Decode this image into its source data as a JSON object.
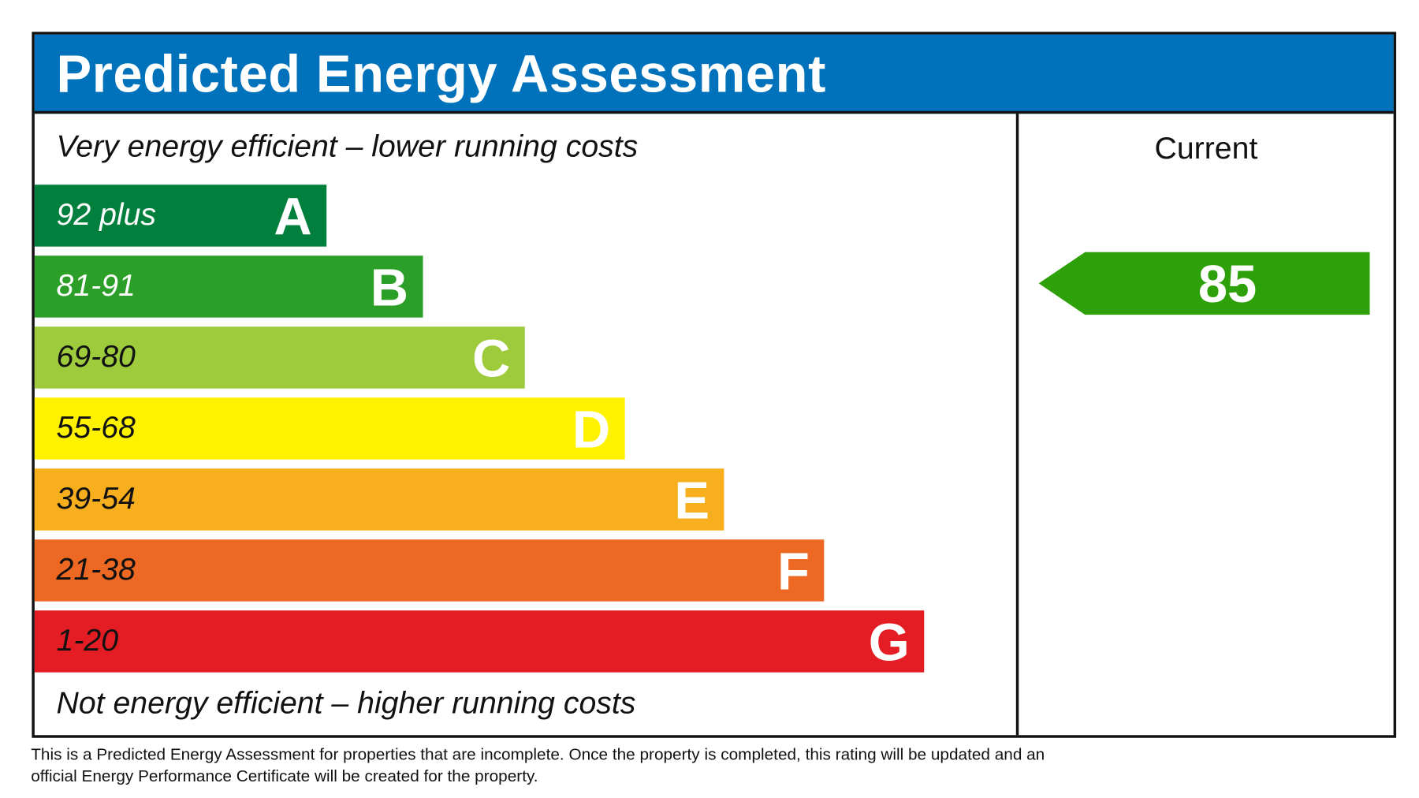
{
  "title": "Predicted Energy Assessment",
  "top_caption": "Very energy efficient – lower running costs",
  "bottom_caption": "Not energy efficient – higher running costs",
  "bands": [
    {
      "range": "92 plus",
      "letter": "A",
      "color": "#007f3d",
      "text_color": "#ffffff"
    },
    {
      "range": "81-91",
      "letter": "B",
      "color": "#2c9f29",
      "text_color": "#ffffff"
    },
    {
      "range": "69-80",
      "letter": "C",
      "color": "#9dcb3c",
      "text_color": "#111111"
    },
    {
      "range": "55-68",
      "letter": "D",
      "color": "#fff200",
      "text_color": "#111111"
    },
    {
      "range": "39-54",
      "letter": "E",
      "color": "#f7af1d",
      "text_color": "#111111"
    },
    {
      "range": "21-38",
      "letter": "F",
      "color": "#ed6823",
      "text_color": "#111111"
    },
    {
      "range": "1-20",
      "letter": "G",
      "color": "#e31d23",
      "text_color": "#111111"
    }
  ],
  "current": {
    "label": "Current",
    "value": "85",
    "color": "#2ea00a"
  },
  "note_line1": "This is a Predicted Energy Assessment for properties that are incomplete. Once the property is completed, this rating will be updated and an",
  "note_line2": "official Energy Performance Certificate will be created for the property."
}
